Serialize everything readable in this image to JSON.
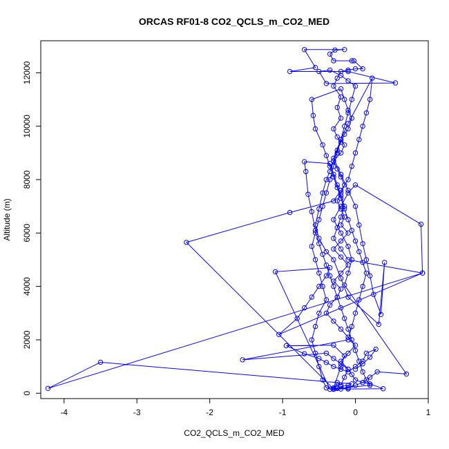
{
  "chart_data": {
    "type": "line",
    "title": "ORCAS RF01-8 CO2_QCLS_m_CO2_MED",
    "xlabel": "CO2_QCLS_m_CO2_MED",
    "ylabel": "Altitude (m)",
    "xlim": [
      -4.32,
      1.0
    ],
    "ylim": [
      -200,
      13200
    ],
    "xticks": [
      -4,
      -3,
      -2,
      -1,
      0,
      1
    ],
    "yticks": [
      0,
      2000,
      4000,
      6000,
      8000,
      10000,
      12000
    ],
    "xtick_labels": [
      "-4",
      "-3",
      "-2",
      "-1",
      "0",
      "1"
    ],
    "ytick_labels": [
      "0",
      "2000",
      "4000",
      "6000",
      "8000",
      "10000",
      "12000"
    ],
    "grid": false,
    "legend": "none",
    "line_color": "#0000ff",
    "marker": "open-circle",
    "series": [
      {
        "points": [
          [
            -0.3,
            150
          ],
          [
            -0.25,
            400
          ],
          [
            -0.2,
            300
          ],
          [
            -0.15,
            600
          ],
          [
            -0.1,
            900
          ],
          [
            -0.2,
            1200
          ],
          [
            -0.1,
            1500
          ],
          [
            0.0,
            1800
          ],
          [
            -0.1,
            2100
          ],
          [
            -0.2,
            2400
          ],
          [
            -0.3,
            2700
          ],
          [
            -0.4,
            3000
          ],
          [
            -0.35,
            3300
          ],
          [
            -0.25,
            3600
          ],
          [
            -0.2,
            3900
          ],
          [
            -0.3,
            4200
          ],
          [
            -0.2,
            4500
          ],
          [
            -0.1,
            4800
          ],
          [
            -0.2,
            5100
          ],
          [
            -0.3,
            5400
          ],
          [
            -0.2,
            5700
          ],
          [
            -0.1,
            6000
          ],
          [
            -0.2,
            6300
          ],
          [
            -0.15,
            6600
          ],
          [
            -0.2,
            6900
          ],
          [
            -0.25,
            7200
          ],
          [
            -0.2,
            7500
          ],
          [
            -0.15,
            7800
          ],
          [
            -0.2,
            8100
          ],
          [
            -0.25,
            8400
          ],
          [
            -0.3,
            8700
          ],
          [
            -0.2,
            9000
          ],
          [
            -0.15,
            9300
          ],
          [
            -0.25,
            9600
          ],
          [
            -0.3,
            9900
          ],
          [
            -0.2,
            10300
          ],
          [
            -0.25,
            10700
          ],
          [
            -0.2,
            11100
          ],
          [
            -0.3,
            11500
          ],
          [
            -0.25,
            11800
          ],
          [
            -0.2,
            12050
          ],
          [
            -0.1,
            12100
          ],
          [
            0.0,
            12150
          ],
          [
            0.1,
            12150
          ],
          [
            -0.02,
            12450
          ],
          [
            -0.05,
            12450
          ],
          [
            -0.3,
            12450
          ],
          [
            -0.35,
            12700
          ],
          [
            -0.28,
            12850
          ],
          [
            -0.15,
            12870
          ],
          [
            -0.7,
            12870
          ],
          [
            -0.55,
            12200
          ],
          [
            -0.9,
            12050
          ],
          [
            -0.1,
            12050
          ],
          [
            0.55,
            11620
          ],
          [
            -0.4,
            11600
          ],
          [
            -0.5,
            12050
          ],
          [
            -0.35,
            12100
          ],
          [
            -0.2,
            11900
          ],
          [
            -0.1,
            11700
          ],
          [
            0.0,
            11500
          ],
          [
            -0.05,
            11000
          ],
          [
            -0.1,
            10500
          ],
          [
            -0.15,
            10000
          ],
          [
            -0.2,
            9500
          ],
          [
            -0.25,
            9000
          ],
          [
            -0.3,
            8500
          ],
          [
            -0.35,
            8000
          ],
          [
            -0.4,
            7500
          ],
          [
            -0.45,
            7000
          ],
          [
            -0.5,
            6500
          ],
          [
            -0.55,
            6000
          ],
          [
            -0.6,
            5500
          ],
          [
            -0.55,
            5000
          ],
          [
            -0.5,
            4500
          ],
          [
            -0.45,
            4000
          ],
          [
            -0.4,
            3500
          ],
          [
            -0.5,
            3000
          ],
          [
            -0.55,
            2500
          ],
          [
            -0.6,
            2000
          ],
          [
            -0.55,
            1500
          ],
          [
            -0.5,
            1000
          ],
          [
            -0.45,
            500
          ],
          [
            -0.4,
            200
          ],
          [
            -0.3,
            150
          ],
          [
            -0.2,
            160
          ],
          [
            -0.1,
            200
          ],
          [
            0.0,
            300
          ],
          [
            0.1,
            400
          ],
          [
            0.2,
            600
          ],
          [
            0.3,
            800
          ],
          [
            0.7,
            720
          ],
          [
            -0.15,
            4050
          ],
          [
            -0.1,
            4500
          ],
          [
            -0.05,
            5000
          ],
          [
            -0.1,
            5500
          ],
          [
            -0.2,
            6000
          ],
          [
            -0.3,
            6500
          ],
          [
            -0.2,
            7000
          ],
          [
            -0.1,
            7500
          ],
          [
            0.0,
            7800
          ],
          [
            0.9,
            6330
          ],
          [
            0.92,
            4500
          ],
          [
            -1.05,
            2200
          ],
          [
            -0.8,
            2800
          ],
          [
            -0.7,
            3200
          ],
          [
            -0.6,
            3600
          ],
          [
            -0.5,
            4000
          ],
          [
            -0.4,
            4400
          ],
          [
            -0.35,
            4700
          ],
          [
            -1.1,
            4550
          ],
          [
            -0.35,
            150
          ],
          [
            -0.25,
            200
          ],
          [
            -0.2,
            250
          ],
          [
            -0.1,
            300
          ],
          [
            -0.05,
            350
          ],
          [
            -3.5,
            1160
          ],
          [
            -4.22,
            180
          ],
          [
            0.92,
            4500
          ],
          [
            -0.1,
            5000
          ],
          [
            -0.2,
            5400
          ],
          [
            -0.3,
            5800
          ],
          [
            -0.25,
            6200
          ],
          [
            -0.2,
            6600
          ],
          [
            -0.15,
            7000
          ],
          [
            -0.2,
            7400
          ],
          [
            -0.25,
            7800
          ],
          [
            -0.3,
            8200
          ],
          [
            -0.35,
            8600
          ],
          [
            -0.7,
            8670
          ],
          [
            -0.68,
            8300
          ],
          [
            -0.65,
            7450
          ],
          [
            -0.6,
            6800
          ],
          [
            -0.55,
            6100
          ],
          [
            -0.5,
            5600
          ],
          [
            -0.45,
            5200
          ],
          [
            -0.4,
            4800
          ],
          [
            -0.35,
            4400
          ],
          [
            -0.3,
            4000
          ],
          [
            -0.25,
            3600
          ],
          [
            -0.2,
            3200
          ],
          [
            -0.15,
            2800
          ],
          [
            -0.1,
            2400
          ],
          [
            -0.05,
            2000
          ],
          [
            0.0,
            1600
          ],
          [
            0.05,
            1200
          ],
          [
            0.1,
            800
          ],
          [
            0.15,
            500
          ],
          [
            0.2,
            300
          ],
          [
            -0.3,
            160
          ],
          [
            -2.32,
            5650
          ],
          [
            -0.9,
            6770
          ],
          [
            -0.3,
            7200
          ],
          [
            -0.2,
            7600
          ],
          [
            -0.1,
            8000
          ],
          [
            -0.05,
            8500
          ],
          [
            0.0,
            9000
          ],
          [
            0.05,
            9500
          ],
          [
            0.1,
            10000
          ],
          [
            0.15,
            10500
          ],
          [
            0.2,
            11000
          ],
          [
            0.23,
            11800
          ],
          [
            -0.1,
            10100
          ],
          [
            -0.2,
            9500
          ],
          [
            -0.3,
            8800
          ],
          [
            -0.2,
            8200
          ],
          [
            -0.1,
            7600
          ],
          [
            0.0,
            7000
          ],
          [
            0.05,
            6300
          ],
          [
            0.1,
            5600
          ],
          [
            0.15,
            5000
          ],
          [
            0.2,
            4400
          ],
          [
            0.25,
            3700
          ],
          [
            0.35,
            2950
          ],
          [
            0.4,
            4900
          ],
          [
            0.32,
            2580
          ],
          [
            -0.1,
            3600
          ],
          [
            -0.2,
            4300
          ],
          [
            -0.3,
            5000
          ],
          [
            -0.4,
            5300
          ],
          [
            -0.5,
            5800
          ],
          [
            -0.55,
            6300
          ],
          [
            -0.5,
            6900
          ],
          [
            -0.45,
            7500
          ],
          [
            -0.4,
            8000
          ],
          [
            -0.35,
            8300
          ],
          [
            -0.3,
            8700
          ],
          [
            -0.25,
            9100
          ],
          [
            -0.2,
            9400
          ],
          [
            -0.15,
            9700
          ],
          [
            -0.1,
            9900
          ],
          [
            -0.05,
            10300
          ],
          [
            -0.1,
            10600
          ],
          [
            -0.15,
            11000
          ],
          [
            -0.2,
            11400
          ],
          [
            -0.6,
            11000
          ],
          [
            -0.58,
            10400
          ],
          [
            -0.55,
            9900
          ],
          [
            -0.45,
            9300
          ],
          [
            -0.4,
            8900
          ],
          [
            -0.35,
            8500
          ],
          [
            -0.3,
            8100
          ],
          [
            -0.25,
            7700
          ],
          [
            -0.2,
            7300
          ],
          [
            -0.15,
            6900
          ],
          [
            -0.1,
            6500
          ],
          [
            -0.05,
            6100
          ],
          [
            0.0,
            5700
          ],
          [
            0.05,
            5300
          ],
          [
            0.1,
            4900
          ],
          [
            0.15,
            4500
          ],
          [
            0.1,
            4000
          ],
          [
            0.05,
            3500
          ],
          [
            0.0,
            3000
          ],
          [
            -0.05,
            2500
          ],
          [
            -0.1,
            2000
          ],
          [
            -1.55,
            1250
          ],
          [
            -0.4,
            1500
          ],
          [
            -0.3,
            1300
          ],
          [
            -0.2,
            1100
          ],
          [
            -0.1,
            900
          ],
          [
            -0.05,
            700
          ],
          [
            0.0,
            500
          ],
          [
            0.1,
            400
          ],
          [
            0.2,
            350
          ],
          [
            0.38,
            170
          ],
          [
            -0.1,
            160
          ],
          [
            -0.25,
            180
          ],
          [
            -0.3,
            200
          ],
          [
            -0.2,
            1000
          ],
          [
            -0.15,
            1400
          ],
          [
            -0.3,
            1800
          ],
          [
            -0.95,
            1780
          ],
          [
            -0.7,
            1480
          ],
          [
            -0.5,
            1300
          ],
          [
            -0.4,
            1150
          ],
          [
            -0.3,
            1000
          ],
          [
            -0.2,
            900
          ],
          [
            -0.1,
            800
          ],
          [
            0.0,
            1000
          ],
          [
            0.1,
            1200
          ],
          [
            0.15,
            1500
          ],
          [
            0.28,
            1650
          ],
          [
            0.2,
            1350
          ],
          [
            0.1,
            1100
          ],
          [
            0.0,
            900
          ]
        ]
      }
    ]
  }
}
